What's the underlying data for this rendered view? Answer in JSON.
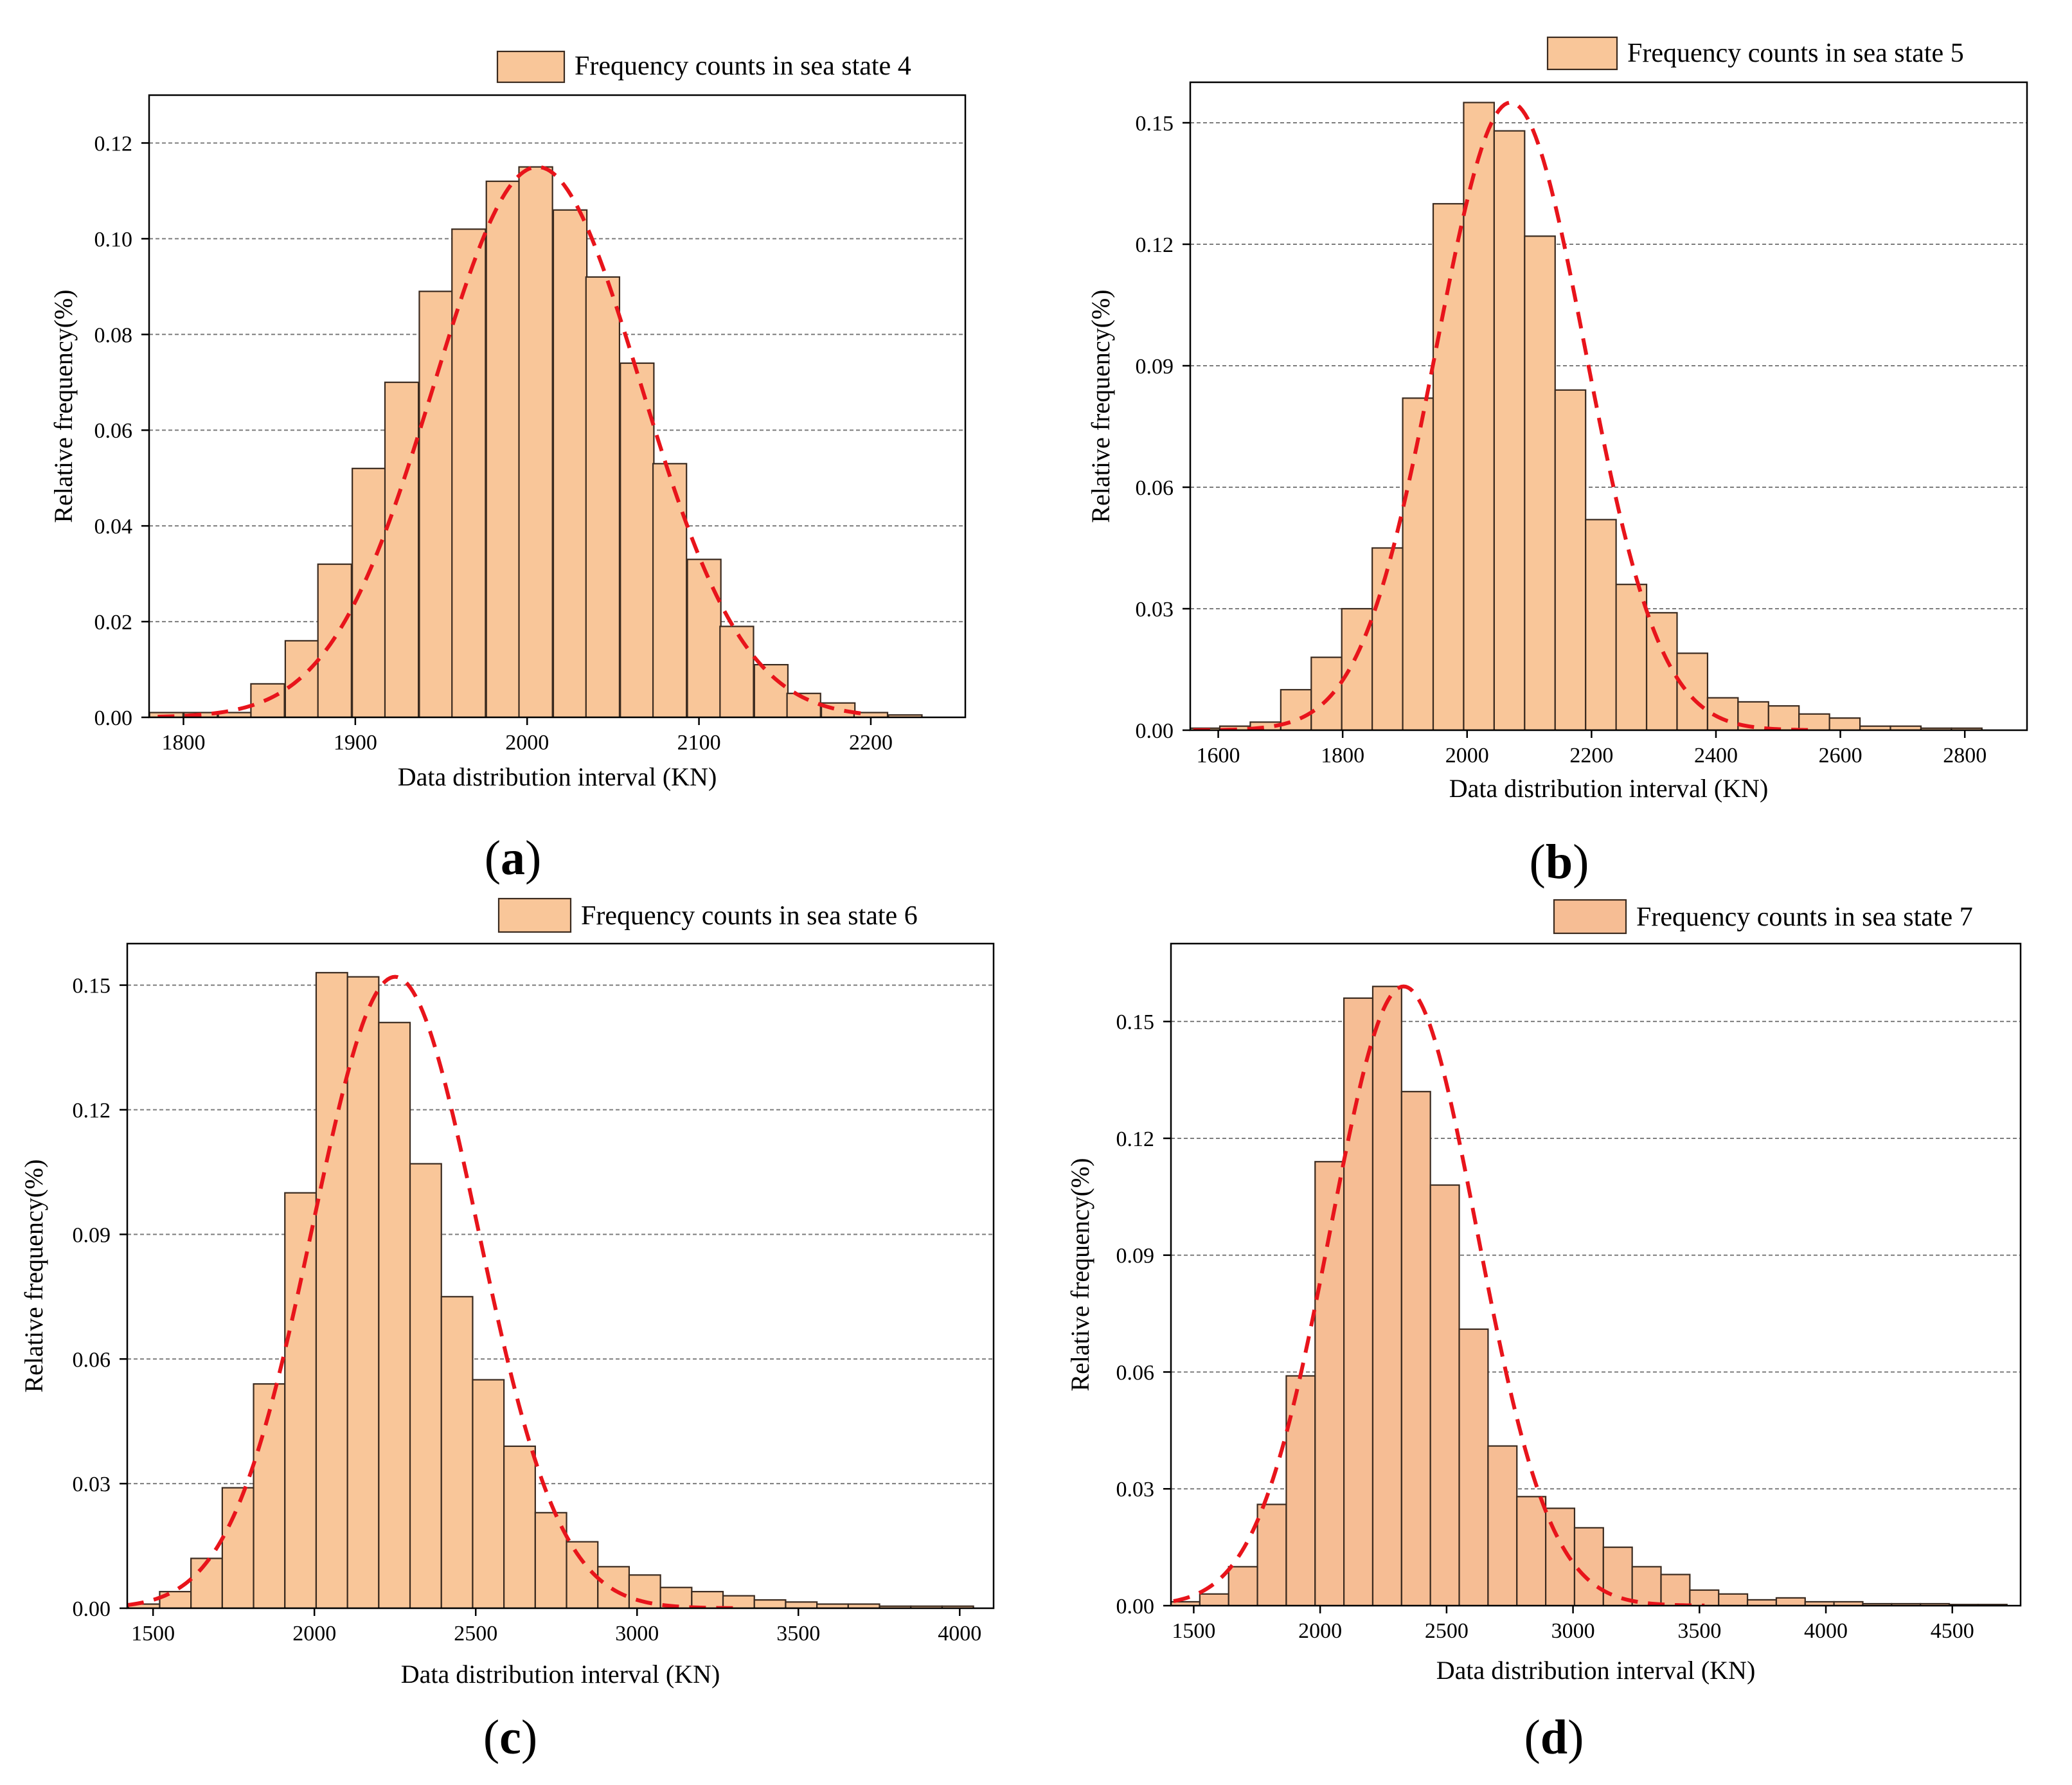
{
  "colors": {
    "bar_fill": "#f9c699",
    "bar_fill_d": "#f6bd94",
    "bar_stroke": "#3a2a1f",
    "fit_line": "#e8141b",
    "grid": "#7d7d7d",
    "axis": "#000000"
  },
  "chart_data": [
    {
      "panel": "a",
      "type": "bar",
      "overlay": "normal-fit-curve (dashed red)",
      "legend": "Frequency counts in sea state 4",
      "xlabel": "Data distribution interval (KN)",
      "ylabel": "Relative frequency(%)",
      "xlim": [
        1780,
        2255
      ],
      "ylim": [
        0,
        0.13
      ],
      "xticks": [
        1800,
        1900,
        2000,
        2100,
        2200
      ],
      "xtick_labels": [
        "1800",
        "1900",
        "2000",
        "2100",
        "2200"
      ],
      "yticks": [
        0,
        0.02,
        0.04,
        0.06,
        0.08,
        0.1,
        0.12
      ],
      "ytick_labels": [
        "0.00",
        "0.02",
        "0.04",
        "0.06",
        "0.08",
        "0.10",
        "0.12"
      ],
      "bin_width": 19.5,
      "bin_centers": [
        1790,
        1810,
        1830,
        1849,
        1869,
        1888,
        1908,
        1927,
        1947,
        1966,
        1986,
        2005,
        2025,
        2044,
        2064,
        2083,
        2103,
        2122,
        2142,
        2161,
        2181,
        2200,
        2220
      ],
      "values": [
        0.001,
        0.001,
        0.001,
        0.007,
        0.016,
        0.032,
        0.052,
        0.07,
        0.089,
        0.102,
        0.112,
        0.115,
        0.106,
        0.092,
        0.074,
        0.053,
        0.033,
        0.019,
        0.011,
        0.005,
        0.003,
        0.001,
        0.0005
      ],
      "fit_curve": {
        "mean": 2006,
        "sd": 60,
        "peak": 0.115,
        "x_start": 1785,
        "x_end": 2200
      }
    },
    {
      "panel": "b",
      "type": "bar",
      "overlay": "normal-fit-curve (dashed red)",
      "legend": "Frequency counts in sea state 5",
      "xlabel": "Data distribution interval (KN)",
      "ylabel": "Relative frequency(%)",
      "xlim": [
        1555,
        2900
      ],
      "ylim": [
        0,
        0.16
      ],
      "xticks": [
        1600,
        1800,
        2000,
        2200,
        2400,
        2600,
        2800
      ],
      "xtick_labels": [
        "1600",
        "1800",
        "2000",
        "2200",
        "2400",
        "2600",
        "2800"
      ],
      "yticks": [
        0,
        0.03,
        0.06,
        0.09,
        0.12,
        0.15
      ],
      "ytick_labels": [
        "0.00",
        "0.03",
        "0.06",
        "0.09",
        "0.12",
        "0.15"
      ],
      "bin_width": 49,
      "bin_centers": [
        1578,
        1627,
        1676,
        1725,
        1774,
        1823,
        1872,
        1921,
        1970,
        2019,
        2068,
        2117,
        2166,
        2215,
        2264,
        2313,
        2362,
        2411,
        2460,
        2509,
        2558,
        2607,
        2656,
        2705,
        2754,
        2803
      ],
      "values": [
        0.0005,
        0.001,
        0.002,
        0.01,
        0.018,
        0.03,
        0.045,
        0.082,
        0.13,
        0.155,
        0.148,
        0.122,
        0.084,
        0.052,
        0.036,
        0.029,
        0.019,
        0.008,
        0.007,
        0.006,
        0.004,
        0.003,
        0.001,
        0.001,
        0.0005,
        0.0005
      ],
      "fit_curve": {
        "mean": 2070,
        "sd": 120,
        "peak": 0.155,
        "x_start": 1560,
        "x_end": 2560
      }
    },
    {
      "panel": "c",
      "type": "bar",
      "overlay": "normal-fit-curve (dashed red)",
      "legend": "Frequency counts in sea state 6",
      "xlabel": "Data distribution interval (KN)",
      "ylabel": "Relative frequency(%)",
      "xlim": [
        1420,
        4105
      ],
      "ylim": [
        0,
        0.16
      ],
      "xticks": [
        1500,
        2000,
        2500,
        3000,
        3500,
        4000
      ],
      "xtick_labels": [
        "1500",
        "2000",
        "2500",
        "3000",
        "3500",
        "4000"
      ],
      "yticks": [
        0,
        0.03,
        0.06,
        0.09,
        0.12,
        0.15
      ],
      "ytick_labels": [
        "0.00",
        "0.03",
        "0.06",
        "0.09",
        "0.12",
        "0.15"
      ],
      "bin_width": 97,
      "bin_centers": [
        1472,
        1569,
        1666,
        1763,
        1860,
        1957,
        2054,
        2151,
        2248,
        2345,
        2442,
        2539,
        2636,
        2733,
        2830,
        2927,
        3024,
        3121,
        3218,
        3315,
        3412,
        3509,
        3606,
        3703,
        3800,
        3897,
        3994
      ],
      "values": [
        0.001,
        0.004,
        0.012,
        0.029,
        0.054,
        0.1,
        0.153,
        0.152,
        0.141,
        0.107,
        0.075,
        0.055,
        0.039,
        0.023,
        0.016,
        0.01,
        0.008,
        0.005,
        0.004,
        0.003,
        0.002,
        0.0015,
        0.001,
        0.001,
        0.0005,
        0.0005,
        0.0005
      ],
      "fit_curve": {
        "mean": 2250,
        "sd": 255,
        "peak": 0.152,
        "x_start": 1420,
        "x_end": 3300
      }
    },
    {
      "panel": "d",
      "type": "bar",
      "overlay": "normal-fit-curve (dashed red)",
      "legend": "Frequency counts in sea state 7",
      "xlabel": "Data distribution interval (KN)",
      "ylabel": "Relative frequency(%)",
      "xlim": [
        1410,
        4770
      ],
      "ylim": [
        0,
        0.17
      ],
      "xticks": [
        1500,
        2000,
        2500,
        3000,
        3500,
        4000,
        4500
      ],
      "xtick_labels": [
        "1500",
        "2000",
        "2500",
        "3000",
        "3500",
        "4000",
        "4500"
      ],
      "yticks": [
        0,
        0.03,
        0.06,
        0.09,
        0.12,
        0.15
      ],
      "ytick_labels": [
        "0.00",
        "0.03",
        "0.06",
        "0.09",
        "0.12",
        "0.15"
      ],
      "bin_width": 114,
      "bin_centers": [
        1467,
        1581,
        1695,
        1809,
        1923,
        2037,
        2151,
        2265,
        2379,
        2493,
        2607,
        2721,
        2835,
        2949,
        3063,
        3177,
        3291,
        3405,
        3519,
        3633,
        3747,
        3861,
        3975,
        4089,
        4203,
        4317,
        4431,
        4545,
        4659
      ],
      "values": [
        0.001,
        0.003,
        0.01,
        0.026,
        0.059,
        0.114,
        0.156,
        0.159,
        0.132,
        0.108,
        0.071,
        0.041,
        0.028,
        0.025,
        0.02,
        0.015,
        0.01,
        0.008,
        0.004,
        0.003,
        0.0015,
        0.002,
        0.001,
        0.001,
        0.0005,
        0.0005,
        0.0005,
        0.0003,
        0.0003
      ],
      "fit_curve": {
        "mean": 2330,
        "sd": 290,
        "peak": 0.159,
        "x_start": 1420,
        "x_end": 3520
      }
    }
  ],
  "panel_labels": [
    "(a)",
    "(b)",
    "(c)",
    "(d)"
  ]
}
